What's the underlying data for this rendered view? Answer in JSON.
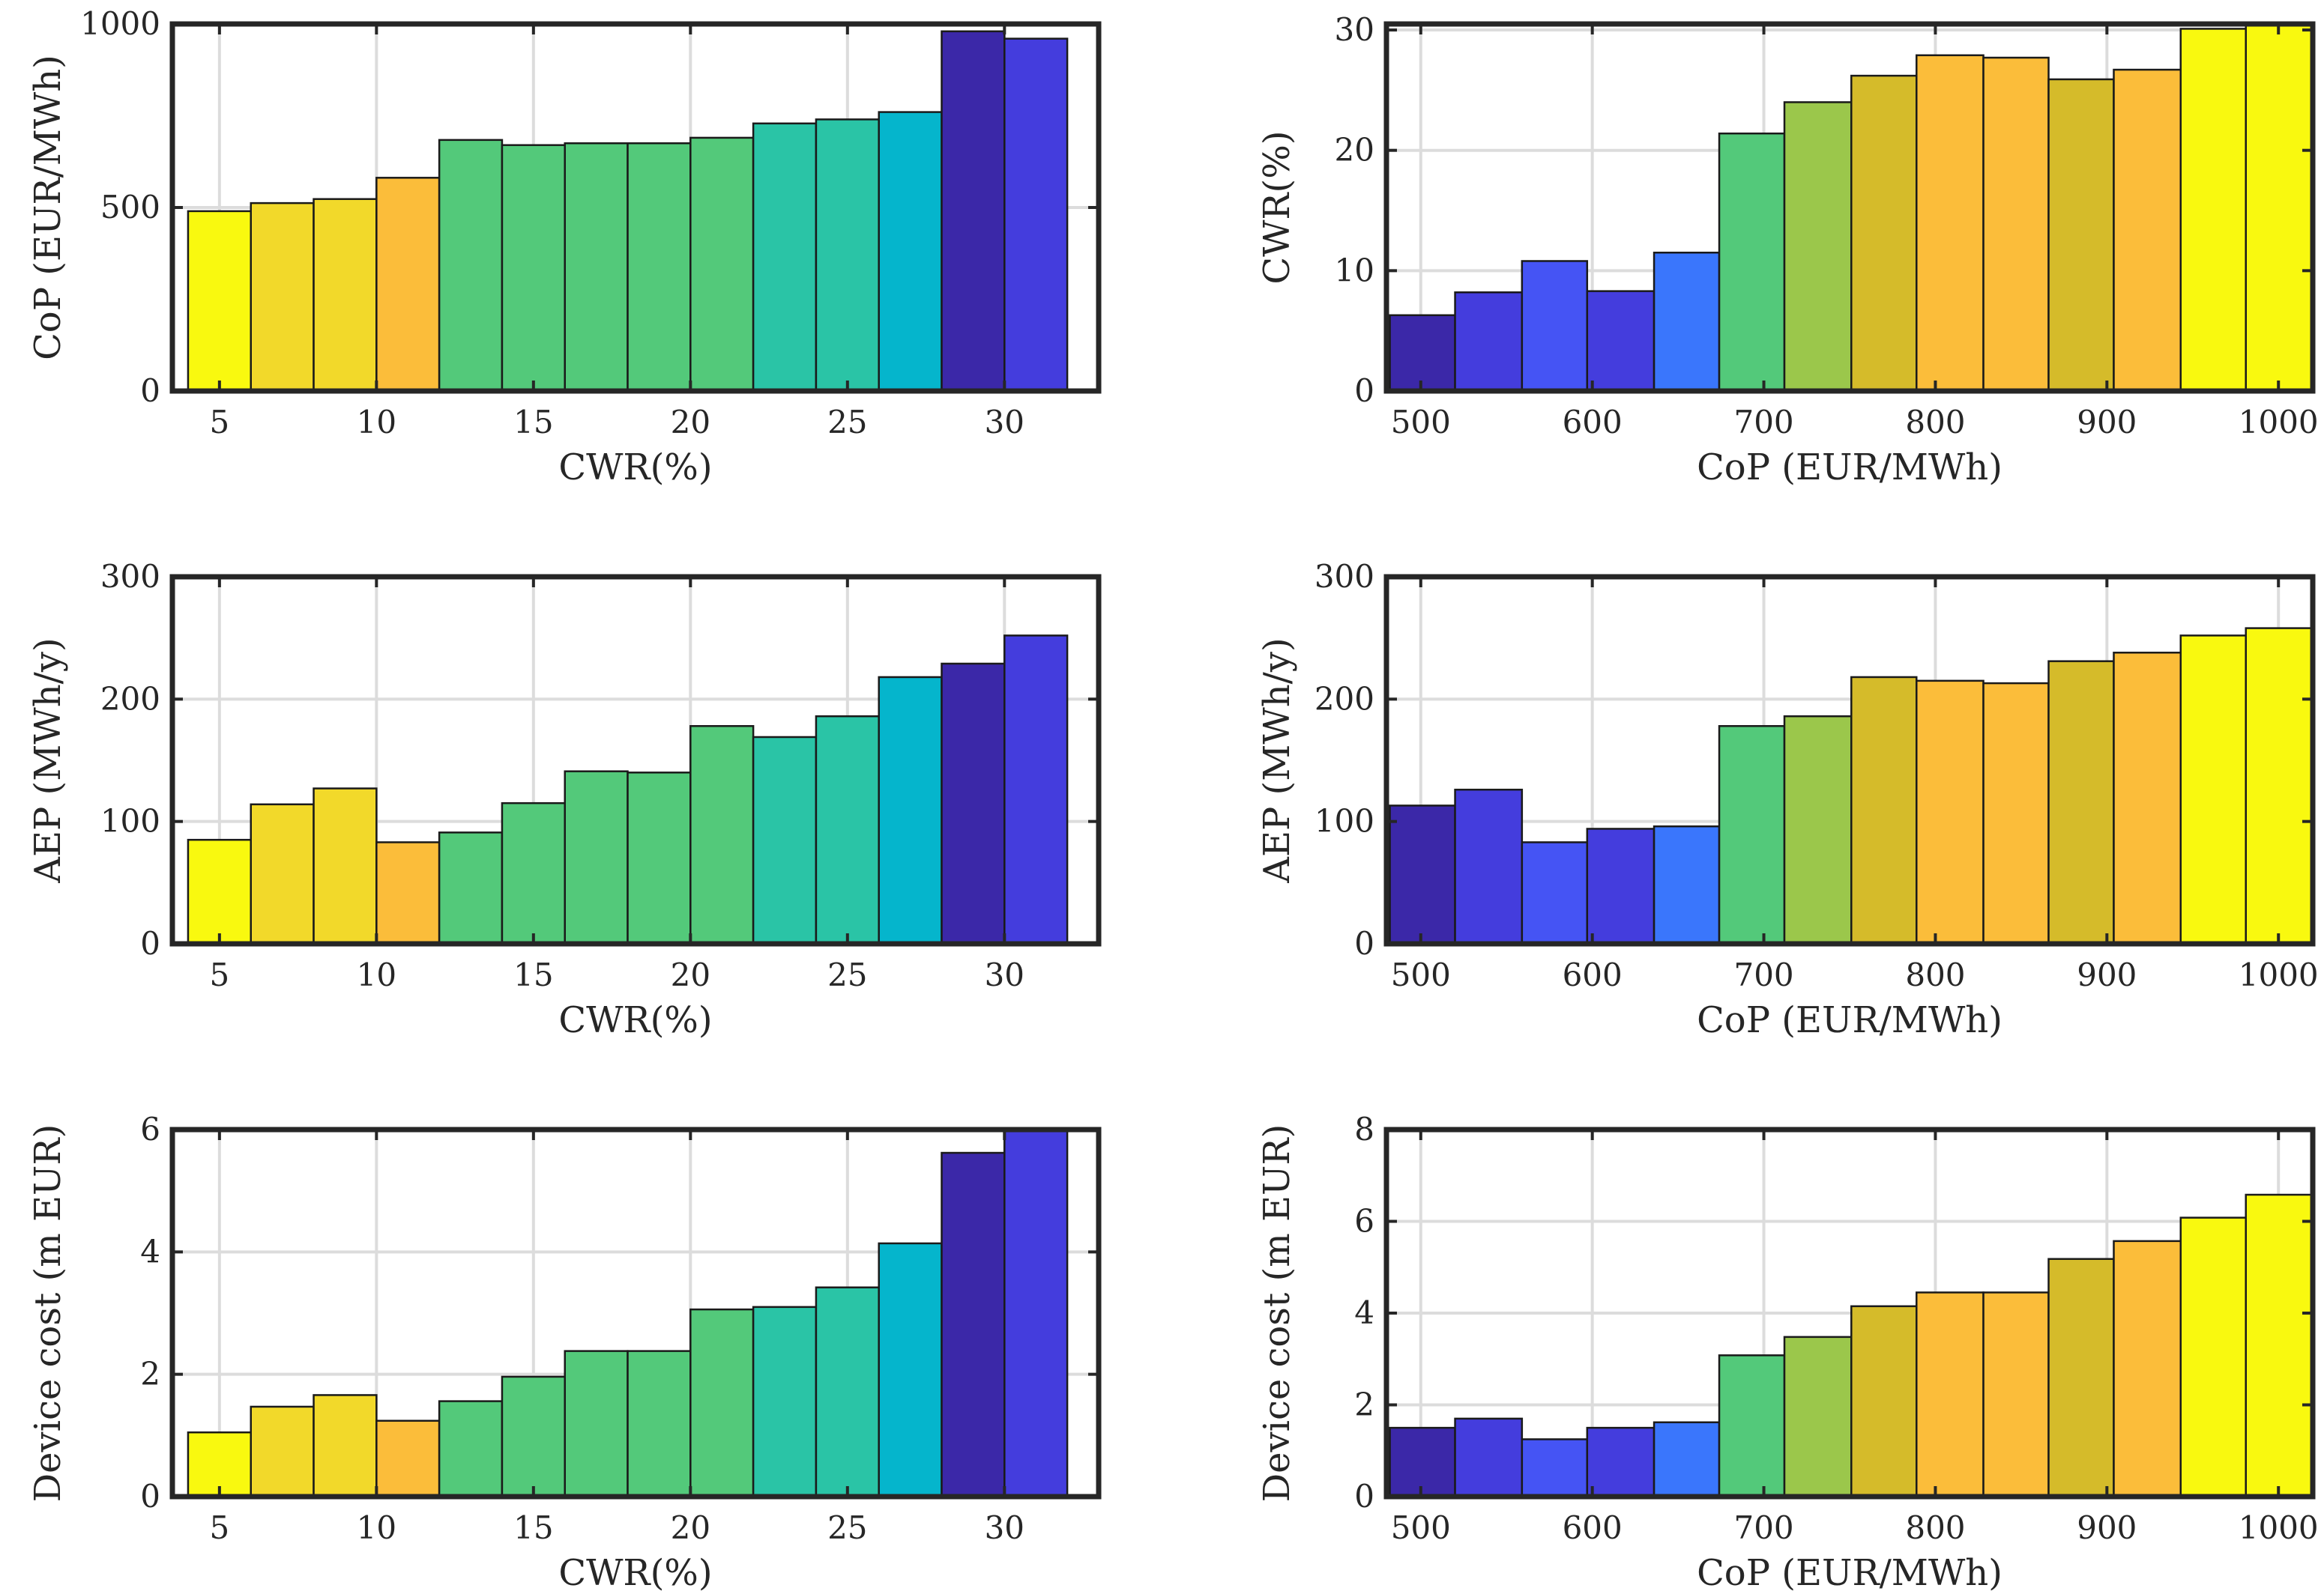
{
  "colors": {
    "yellow": "#f9f90f",
    "gold": "#f2d92a",
    "olive": "#d5bb2a",
    "orange": "#fbbd3a",
    "yellowgreen": "#9bc74b",
    "green": "#53c97a",
    "teal": "#2ac4a6",
    "cyan": "#05b5cc",
    "darkblue": "#3b28a8",
    "blue": "#443ddd",
    "blue2": "#4554f4",
    "lightblue": "#3a76fc",
    "grid": "#dcdcdc",
    "axis": "#262626",
    "edge": "#1a1a1a"
  },
  "chart_data": [
    {
      "id": "cop-vs-cwr",
      "type": "bar",
      "xlabel": "CWR(%)",
      "ylabel": "CoP (EUR/MWh)",
      "xlim": [
        3.5,
        33
      ],
      "ylim": [
        0,
        1000
      ],
      "xticks": [
        5,
        10,
        15,
        20,
        25,
        30
      ],
      "yticks": [
        0,
        500,
        1000
      ],
      "grid": true,
      "bin_edges": [
        4,
        6,
        8,
        10,
        12,
        14,
        16,
        18,
        20,
        22,
        24,
        26,
        28,
        30,
        32
      ],
      "values": [
        490,
        512,
        523,
        581,
        684,
        670,
        675,
        675,
        690,
        729,
        740,
        760,
        980,
        960
      ],
      "bar_colors": [
        "yellow",
        "gold",
        "gold",
        "orange",
        "green",
        "green",
        "green",
        "green",
        "green",
        "teal",
        "teal",
        "cyan",
        "darkblue",
        "blue"
      ]
    },
    {
      "id": "cwr-vs-cop",
      "type": "bar",
      "xlabel": "CoP (EUR/MWh)",
      "ylabel": "CWR(%)",
      "xlim": [
        480,
        1020
      ],
      "ylim": [
        0,
        30.5
      ],
      "xticks": [
        500,
        600,
        700,
        800,
        900,
        1000
      ],
      "yticks": [
        0,
        10,
        20,
        30
      ],
      "grid": true,
      "bin_edges": [
        482,
        520,
        559,
        597,
        636,
        674,
        712,
        751,
        789,
        828,
        866,
        904,
        943,
        981,
        1020
      ],
      "values": [
        6.3,
        8.2,
        10.8,
        8.3,
        11.5,
        21.4,
        24.0,
        26.2,
        27.9,
        27.7,
        25.9,
        26.7,
        30.1,
        31.0
      ],
      "bar_colors": [
        "darkblue",
        "blue",
        "blue2",
        "blue",
        "lightblue",
        "green",
        "yellowgreen",
        "olive",
        "orange",
        "orange",
        "olive",
        "orange",
        "yellow",
        "yellow"
      ]
    },
    {
      "id": "aep-vs-cwr",
      "type": "bar",
      "xlabel": "CWR(%)",
      "ylabel": "AEP (MWh/y)",
      "xlim": [
        3.5,
        33
      ],
      "ylim": [
        0,
        300
      ],
      "xticks": [
        5,
        10,
        15,
        20,
        25,
        30
      ],
      "yticks": [
        0,
        100,
        200,
        300
      ],
      "grid": true,
      "bin_edges": [
        4,
        6,
        8,
        10,
        12,
        14,
        16,
        18,
        20,
        22,
        24,
        26,
        28,
        30,
        32
      ],
      "values": [
        85,
        114,
        127,
        83,
        91,
        115,
        141,
        140,
        178,
        169,
        186,
        218,
        229,
        252
      ],
      "bar_colors": [
        "yellow",
        "gold",
        "gold",
        "orange",
        "green",
        "green",
        "green",
        "green",
        "green",
        "teal",
        "teal",
        "cyan",
        "darkblue",
        "blue"
      ]
    },
    {
      "id": "aep-vs-cop",
      "type": "bar",
      "xlabel": "CoP (EUR/MWh)",
      "ylabel": "AEP (MWh/y)",
      "xlim": [
        480,
        1020
      ],
      "ylim": [
        0,
        300
      ],
      "xticks": [
        500,
        600,
        700,
        800,
        900,
        1000
      ],
      "yticks": [
        0,
        100,
        200,
        300
      ],
      "grid": true,
      "bin_edges": [
        482,
        520,
        559,
        597,
        636,
        674,
        712,
        751,
        789,
        828,
        866,
        904,
        943,
        981,
        1020
      ],
      "values": [
        113,
        126,
        83,
        94,
        96,
        178,
        186,
        218,
        215,
        213,
        231,
        238,
        252,
        258
      ],
      "bar_colors": [
        "darkblue",
        "blue",
        "blue2",
        "blue",
        "lightblue",
        "green",
        "yellowgreen",
        "olive",
        "orange",
        "orange",
        "olive",
        "orange",
        "yellow",
        "yellow"
      ]
    },
    {
      "id": "cost-vs-cwr",
      "type": "bar",
      "xlabel": "CWR(%)",
      "ylabel": "Device cost (m EUR)",
      "xlim": [
        3.5,
        33
      ],
      "ylim": [
        0,
        6
      ],
      "xticks": [
        5,
        10,
        15,
        20,
        25,
        30
      ],
      "yticks": [
        0,
        2,
        4,
        6
      ],
      "grid": true,
      "bin_edges": [
        4,
        6,
        8,
        10,
        12,
        14,
        16,
        18,
        20,
        22,
        24,
        26,
        28,
        30,
        32
      ],
      "values": [
        1.05,
        1.47,
        1.66,
        1.24,
        1.56,
        1.96,
        2.38,
        2.38,
        3.06,
        3.1,
        3.42,
        4.14,
        5.62,
        6.1
      ],
      "bar_colors": [
        "yellow",
        "gold",
        "gold",
        "orange",
        "green",
        "green",
        "green",
        "green",
        "green",
        "teal",
        "teal",
        "cyan",
        "darkblue",
        "blue"
      ]
    },
    {
      "id": "cost-vs-cop",
      "type": "bar",
      "xlabel": "CoP (EUR/MWh)",
      "ylabel": "Device cost (m EUR)",
      "xlim": [
        480,
        1020
      ],
      "ylim": [
        0,
        8
      ],
      "xticks": [
        500,
        600,
        700,
        800,
        900,
        1000
      ],
      "yticks": [
        0,
        2,
        4,
        6,
        8
      ],
      "grid": true,
      "bin_edges": [
        482,
        520,
        559,
        597,
        636,
        674,
        712,
        751,
        789,
        828,
        866,
        904,
        943,
        981,
        1020
      ],
      "values": [
        1.5,
        1.7,
        1.25,
        1.5,
        1.62,
        3.08,
        3.48,
        4.15,
        4.45,
        4.45,
        5.18,
        5.57,
        6.08,
        6.58
      ],
      "bar_colors": [
        "darkblue",
        "blue",
        "blue2",
        "blue",
        "lightblue",
        "green",
        "yellowgreen",
        "olive",
        "orange",
        "orange",
        "olive",
        "orange",
        "yellow",
        "yellow"
      ]
    }
  ]
}
